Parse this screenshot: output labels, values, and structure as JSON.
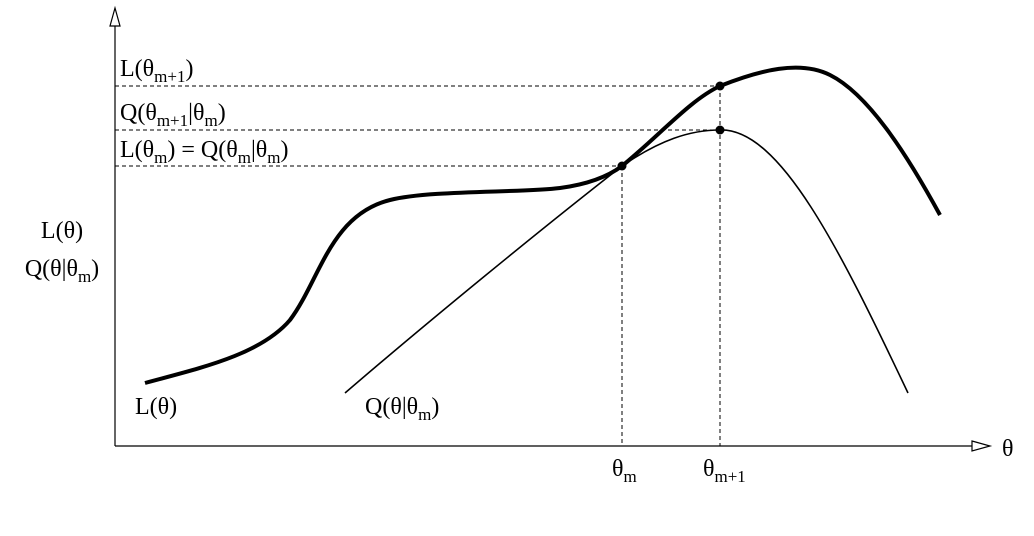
{
  "labels": {
    "l_next": [
      "L(θ",
      "m+1",
      ")"
    ],
    "q_next": [
      "Q(θ",
      "m+1",
      "|θ",
      "m",
      ")"
    ],
    "l_equal_q": [
      "L(θ",
      "m",
      ") = Q(θ",
      "m",
      "|θ",
      "m",
      ")"
    ],
    "y_axis_l": [
      "L(θ)"
    ],
    "y_axis_q": [
      "Q(θ|θ",
      "m",
      ")"
    ],
    "curve_l": [
      "L(θ)"
    ],
    "curve_q": [
      "Q(θ|θ",
      "m",
      ")"
    ],
    "x_axis": [
      "θ"
    ],
    "tick_m": [
      "θ",
      "m"
    ],
    "tick_m1": [
      "θ",
      "m+1"
    ]
  }
}
